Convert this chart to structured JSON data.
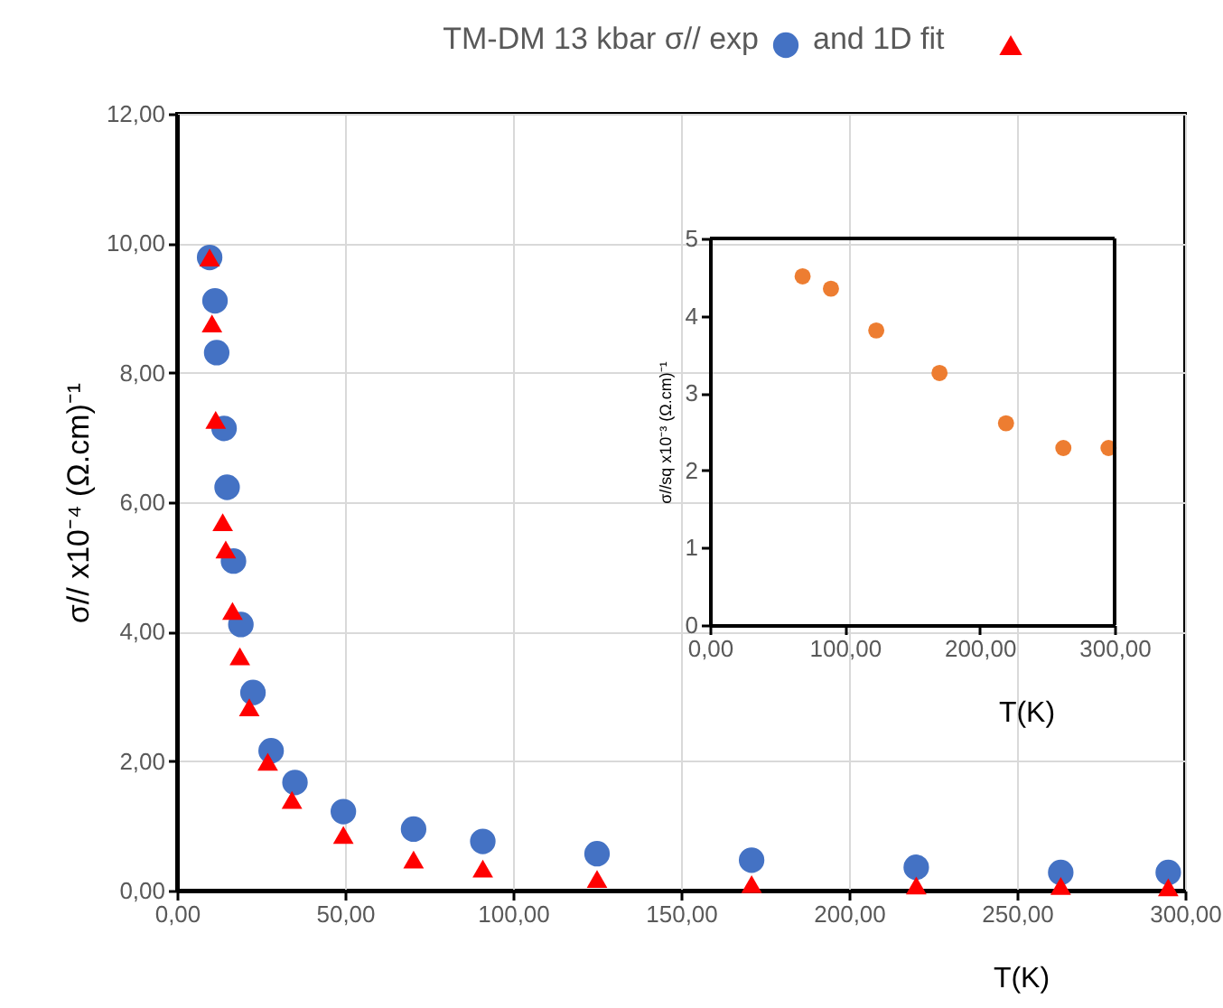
{
  "chart_data": [
    {
      "type": "scatter",
      "legend": "top",
      "grid": true,
      "xlabel": "T(K)",
      "ylabel": "σ// x10⁻⁴ (Ω.cm)⁻¹",
      "xlim": [
        0,
        300
      ],
      "ylim": [
        0,
        12
      ],
      "xticks": [
        {
          "value": 0,
          "label": "0,00"
        },
        {
          "value": 50,
          "label": "50,00"
        },
        {
          "value": 100,
          "label": "100,00"
        },
        {
          "value": 150,
          "label": "150,00"
        },
        {
          "value": 200,
          "label": "200,00"
        },
        {
          "value": 250,
          "label": "250,00"
        },
        {
          "value": 300,
          "label": "300,00"
        }
      ],
      "yticks": [
        {
          "value": 0,
          "label": "0,00"
        },
        {
          "value": 2,
          "label": "2,00"
        },
        {
          "value": 4,
          "label": "4,00"
        },
        {
          "value": 6,
          "label": "6,00"
        },
        {
          "value": 8,
          "label": "8,00"
        },
        {
          "value": 10,
          "label": "10,00"
        },
        {
          "value": 12,
          "label": "12,00"
        }
      ],
      "series": [
        {
          "name": "TM-DM 13 kbar σ// exp",
          "color": "#4472c4",
          "marker": "circle",
          "x": [
            9.7,
            11.3,
            11.8,
            14,
            14.9,
            16.8,
            19,
            22.6,
            28,
            35.1,
            49.5,
            70.4,
            91,
            125,
            171,
            220,
            263,
            295
          ],
          "values": [
            9.78,
            9.11,
            8.31,
            7.14,
            6.23,
            5.09,
            4.11,
            3.06,
            2.16,
            1.67,
            1.22,
            0.95,
            0.76,
            0.57,
            0.47,
            0.36,
            0.28,
            0.28
          ]
        },
        {
          "name": "and 1D fit",
          "color": "#ff0000",
          "marker": "triangle",
          "x": [
            9.7,
            10.4,
            11.5,
            13.6,
            14.5,
            16.5,
            18.7,
            21.5,
            27,
            34.2,
            49.5,
            70.4,
            91,
            125,
            171,
            220,
            263,
            295
          ],
          "values": [
            9.78,
            8.76,
            7.27,
            5.69,
            5.27,
            4.32,
            3.62,
            2.83,
            1.99,
            1.4,
            0.86,
            0.48,
            0.34,
            0.18,
            0.1,
            0.08,
            0.07,
            0.05
          ]
        }
      ]
    },
    {
      "type": "scatter",
      "xlabel": "T(K)",
      "ylabel": "σ//sq x10⁻³ (Ω.cm)⁻¹",
      "xlim": [
        0,
        300
      ],
      "ylim": [
        0,
        5
      ],
      "xticks": [
        {
          "value": 0,
          "label": "0,00"
        },
        {
          "value": 100,
          "label": "100,00"
        },
        {
          "value": 200,
          "label": "200,00"
        },
        {
          "value": 300,
          "label": "300,00"
        }
      ],
      "yticks": [
        0,
        1,
        2,
        3,
        4,
        5
      ],
      "series": [
        {
          "color": "#ed7d31",
          "marker": "circle",
          "x": [
            68.7,
            89.7,
            123.3,
            170.2,
            219.5,
            262,
            295.5
          ],
          "values": [
            4.51,
            4.35,
            3.81,
            3.26,
            2.61,
            2.29,
            2.29
          ]
        }
      ]
    }
  ]
}
